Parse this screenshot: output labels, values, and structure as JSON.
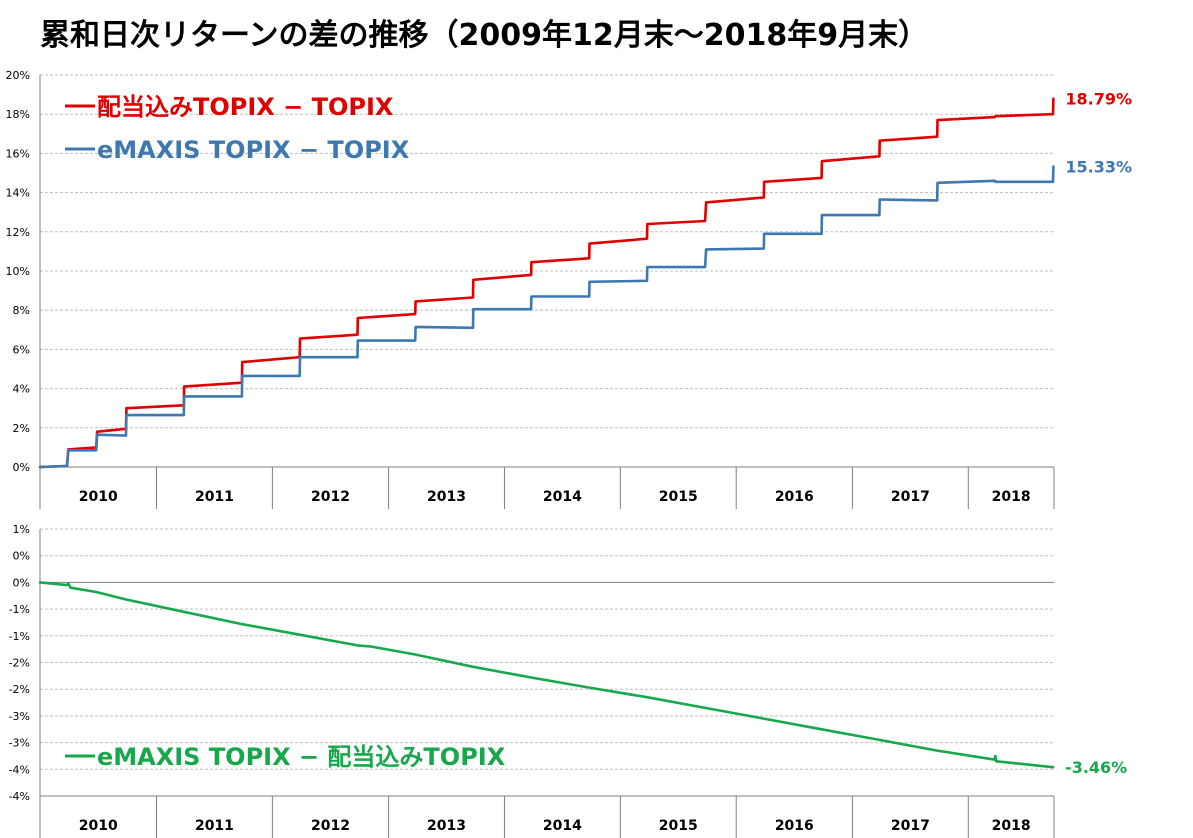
{
  "title": "累和日次リターンの差の推移（2009年12月末～2018年9月末）",
  "colors": {
    "red": "#e00000",
    "blue": "#3d78b0",
    "green": "#16a84a"
  },
  "chart_data": [
    {
      "type": "line",
      "x_type": "date",
      "xlim": [
        "2009-12-30",
        "2018-09-28"
      ],
      "ylim": [
        0,
        20
      ],
      "y_unit": "%",
      "y_ticks": [
        0,
        2,
        4,
        6,
        8,
        10,
        12,
        14,
        16,
        18,
        20
      ],
      "y_tick_labels": [
        "0%",
        "2%",
        "4%",
        "6%",
        "8%",
        "10%",
        "12%",
        "14%",
        "16%",
        "18%",
        "20%"
      ],
      "x_tick_labels": [
        "2010",
        "2011",
        "2012",
        "2013",
        "2014",
        "2015",
        "2016",
        "2017",
        "2018"
      ],
      "grid": true,
      "legend_position": "top-left",
      "series": [
        {
          "name": "配当込みTOPIX − TOPIX",
          "color": "#e00000",
          "end_label": "18.79%",
          "points": [
            [
              "2009-12-30",
              0.0
            ],
            [
              "2010-03-25",
              0.05
            ],
            [
              "2010-03-29",
              0.9
            ],
            [
              "2010-06-25",
              1.0
            ],
            [
              "2010-06-28",
              1.8
            ],
            [
              "2010-09-27",
              1.95
            ],
            [
              "2010-09-28",
              3.0
            ],
            [
              "2011-03-28",
              3.15
            ],
            [
              "2011-03-29",
              4.1
            ],
            [
              "2011-09-27",
              4.3
            ],
            [
              "2011-09-28",
              5.35
            ],
            [
              "2012-03-27",
              5.6
            ],
            [
              "2012-03-28",
              6.55
            ],
            [
              "2012-09-25",
              6.75
            ],
            [
              "2012-09-26",
              7.6
            ],
            [
              "2013-03-26",
              7.8
            ],
            [
              "2013-03-27",
              8.45
            ],
            [
              "2013-09-24",
              8.65
            ],
            [
              "2013-09-25",
              9.55
            ],
            [
              "2014-03-26",
              9.8
            ],
            [
              "2014-03-27",
              10.45
            ],
            [
              "2014-09-25",
              10.65
            ],
            [
              "2014-09-26",
              11.4
            ],
            [
              "2015-03-26",
              11.65
            ],
            [
              "2015-03-27",
              12.4
            ],
            [
              "2015-09-25",
              12.55
            ],
            [
              "2015-09-28",
              13.5
            ],
            [
              "2016-03-28",
              13.75
            ],
            [
              "2016-03-29",
              14.55
            ],
            [
              "2016-09-26",
              14.75
            ],
            [
              "2016-09-27",
              15.6
            ],
            [
              "2017-03-27",
              15.85
            ],
            [
              "2017-03-28",
              16.65
            ],
            [
              "2017-09-25",
              16.85
            ],
            [
              "2017-09-26",
              17.7
            ],
            [
              "2018-03-26",
              17.85
            ],
            [
              "2018-03-27",
              17.9
            ],
            [
              "2018-09-25",
              18.0
            ],
            [
              "2018-09-26",
              18.79
            ]
          ]
        },
        {
          "name": "eMAXIS TOPIX − TOPIX",
          "color": "#3d78b0",
          "end_label": "15.33%",
          "points": [
            [
              "2009-12-30",
              0.0
            ],
            [
              "2010-03-25",
              0.05
            ],
            [
              "2010-03-29",
              0.85
            ],
            [
              "2010-06-25",
              0.85
            ],
            [
              "2010-06-28",
              1.65
            ],
            [
              "2010-09-27",
              1.6
            ],
            [
              "2010-09-28",
              2.65
            ],
            [
              "2011-03-28",
              2.65
            ],
            [
              "2011-03-29",
              3.6
            ],
            [
              "2011-09-27",
              3.6
            ],
            [
              "2011-09-28",
              4.65
            ],
            [
              "2012-03-27",
              4.65
            ],
            [
              "2012-03-28",
              5.6
            ],
            [
              "2012-09-25",
              5.6
            ],
            [
              "2012-09-26",
              6.45
            ],
            [
              "2013-03-26",
              6.45
            ],
            [
              "2013-03-27",
              7.15
            ],
            [
              "2013-09-24",
              7.1
            ],
            [
              "2013-09-25",
              8.05
            ],
            [
              "2014-03-26",
              8.05
            ],
            [
              "2014-03-27",
              8.7
            ],
            [
              "2014-09-25",
              8.7
            ],
            [
              "2014-09-26",
              9.45
            ],
            [
              "2015-03-26",
              9.5
            ],
            [
              "2015-03-27",
              10.2
            ],
            [
              "2015-09-25",
              10.2
            ],
            [
              "2015-09-28",
              11.1
            ],
            [
              "2016-03-28",
              11.15
            ],
            [
              "2016-03-29",
              11.9
            ],
            [
              "2016-09-26",
              11.9
            ],
            [
              "2016-09-27",
              12.85
            ],
            [
              "2017-03-27",
              12.85
            ],
            [
              "2017-03-28",
              13.65
            ],
            [
              "2017-09-25",
              13.6
            ],
            [
              "2017-09-26",
              14.5
            ],
            [
              "2018-03-26",
              14.6
            ],
            [
              "2018-03-27",
              14.55
            ],
            [
              "2018-09-25",
              14.55
            ],
            [
              "2018-09-26",
              15.33
            ]
          ]
        }
      ]
    },
    {
      "type": "line",
      "x_type": "date",
      "xlim": [
        "2009-12-30",
        "2018-09-28"
      ],
      "ylim": [
        -4,
        1
      ],
      "y_unit": "%",
      "y_ticks": [
        1,
        0.5,
        0,
        -0.5,
        -1,
        -1.5,
        -2,
        -2.5,
        -3,
        -3.5,
        -4
      ],
      "y_tick_labels": [
        "1%",
        "0%",
        "0%",
        "-1%",
        "-1%",
        "-2%",
        "-2%",
        "-3%",
        "-3%",
        "-4%",
        "-4%"
      ],
      "x_tick_labels": [
        "2010",
        "2011",
        "2012",
        "2013",
        "2014",
        "2015",
        "2016",
        "2017",
        "2018"
      ],
      "grid": true,
      "legend_position": "bottom-left",
      "series": [
        {
          "name": "eMAXIS TOPIX − 配当込みTOPIX",
          "color": "#16a84a",
          "end_label": "-3.46%",
          "points": [
            [
              "2009-12-30",
              0.0
            ],
            [
              "2010-03-25",
              -0.05
            ],
            [
              "2010-03-29",
              -0.02
            ],
            [
              "2010-04-05",
              -0.1
            ],
            [
              "2010-06-25",
              -0.18
            ],
            [
              "2010-09-27",
              -0.32
            ],
            [
              "2011-03-28",
              -0.55
            ],
            [
              "2011-09-27",
              -0.78
            ],
            [
              "2012-03-27",
              -0.98
            ],
            [
              "2012-09-25",
              -1.18
            ],
            [
              "2012-11-06",
              -1.2
            ],
            [
              "2013-03-26",
              -1.35
            ],
            [
              "2013-09-24",
              -1.58
            ],
            [
              "2014-03-26",
              -1.78
            ],
            [
              "2014-09-25",
              -1.97
            ],
            [
              "2015-03-26",
              -2.15
            ],
            [
              "2015-09-25",
              -2.35
            ],
            [
              "2016-03-28",
              -2.55
            ],
            [
              "2016-09-26",
              -2.75
            ],
            [
              "2017-03-27",
              -2.95
            ],
            [
              "2017-09-25",
              -3.15
            ],
            [
              "2018-03-26",
              -3.32
            ],
            [
              "2018-03-27",
              -3.25
            ],
            [
              "2018-03-30",
              -3.35
            ],
            [
              "2018-09-25",
              -3.46
            ]
          ]
        }
      ]
    }
  ]
}
